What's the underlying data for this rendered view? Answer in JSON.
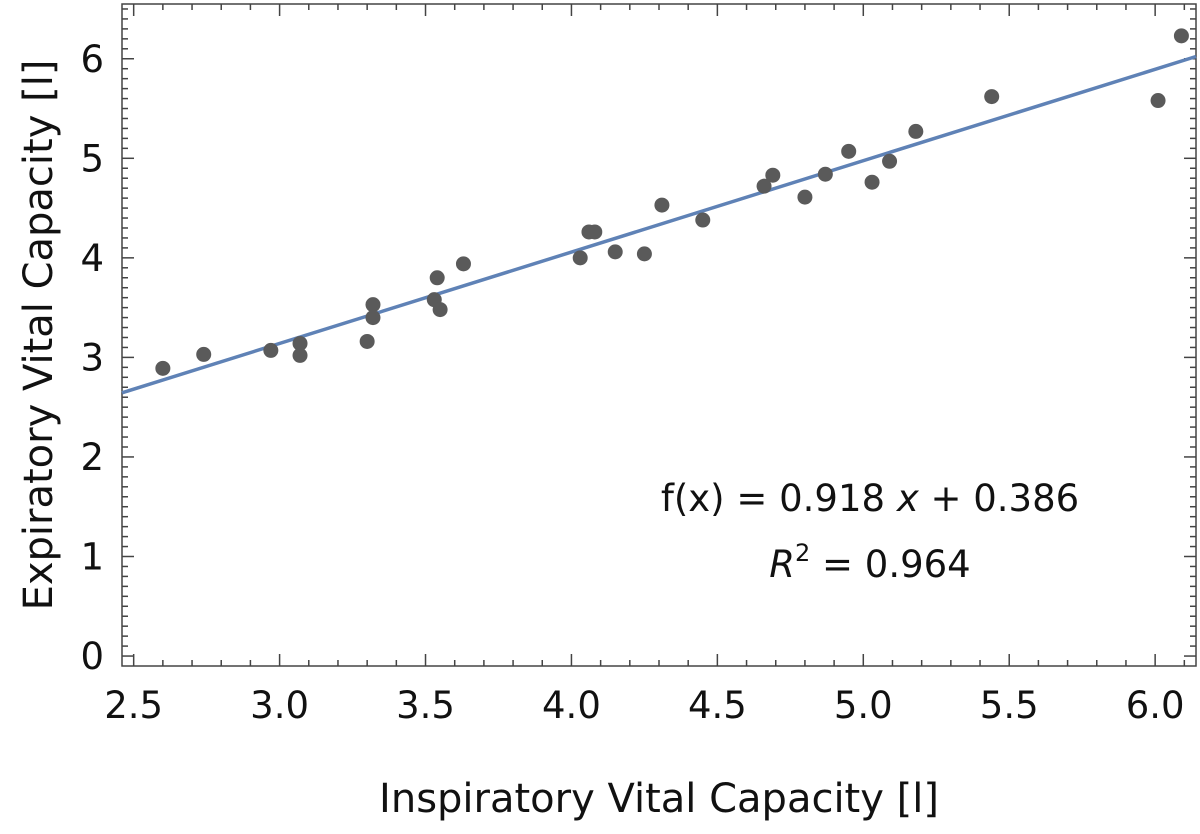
{
  "chart_data": {
    "type": "scatter",
    "title": "",
    "xlabel": "Inspiratory Vital Capacity [l]",
    "ylabel": "Expiratory Vital Capacity [l]",
    "xlim": [
      2.46,
      6.14
    ],
    "ylim": [
      -0.1,
      6.55
    ],
    "x_ticks": [
      2.5,
      3.0,
      3.5,
      4.0,
      4.5,
      5.0,
      5.5,
      6.0
    ],
    "x_tick_labels": [
      "2.5",
      "3.0",
      "3.5",
      "4.0",
      "4.5",
      "5.0",
      "5.5",
      "6.0"
    ],
    "y_ticks": [
      0,
      1,
      2,
      3,
      4,
      5,
      6
    ],
    "y_tick_labels": [
      "0",
      "1",
      "2",
      "3",
      "4",
      "5",
      "6"
    ],
    "grid": false,
    "point_color": "#5a5a5a",
    "line_color": "#5f82b6",
    "points": [
      {
        "x": 2.6,
        "y": 2.89
      },
      {
        "x": 2.74,
        "y": 3.03
      },
      {
        "x": 2.97,
        "y": 3.07
      },
      {
        "x": 3.07,
        "y": 3.14
      },
      {
        "x": 3.07,
        "y": 3.02
      },
      {
        "x": 3.3,
        "y": 3.16
      },
      {
        "x": 3.32,
        "y": 3.53
      },
      {
        "x": 3.32,
        "y": 3.4
      },
      {
        "x": 3.53,
        "y": 3.58
      },
      {
        "x": 3.54,
        "y": 3.8
      },
      {
        "x": 3.55,
        "y": 3.48
      },
      {
        "x": 3.63,
        "y": 3.94
      },
      {
        "x": 4.03,
        "y": 4.0
      },
      {
        "x": 4.06,
        "y": 4.26
      },
      {
        "x": 4.08,
        "y": 4.26
      },
      {
        "x": 4.15,
        "y": 4.06
      },
      {
        "x": 4.25,
        "y": 4.04
      },
      {
        "x": 4.31,
        "y": 4.53
      },
      {
        "x": 4.45,
        "y": 4.38
      },
      {
        "x": 4.66,
        "y": 4.72
      },
      {
        "x": 4.69,
        "y": 4.83
      },
      {
        "x": 4.8,
        "y": 4.61
      },
      {
        "x": 4.87,
        "y": 4.84
      },
      {
        "x": 4.95,
        "y": 5.07
      },
      {
        "x": 5.03,
        "y": 4.76
      },
      {
        "x": 5.09,
        "y": 4.97
      },
      {
        "x": 5.18,
        "y": 5.27
      },
      {
        "x": 5.44,
        "y": 5.62
      },
      {
        "x": 6.01,
        "y": 5.58
      },
      {
        "x": 6.09,
        "y": 6.23
      }
    ],
    "fit": {
      "slope": 0.918,
      "intercept": 0.386
    },
    "annotations": {
      "equation_prefix": "f(x) = 0.918 ",
      "equation_var": "x",
      "equation_suffix": " + 0.386",
      "r2_symbol": "R",
      "r2_exponent": "2",
      "r2_value": " = 0.964"
    }
  }
}
